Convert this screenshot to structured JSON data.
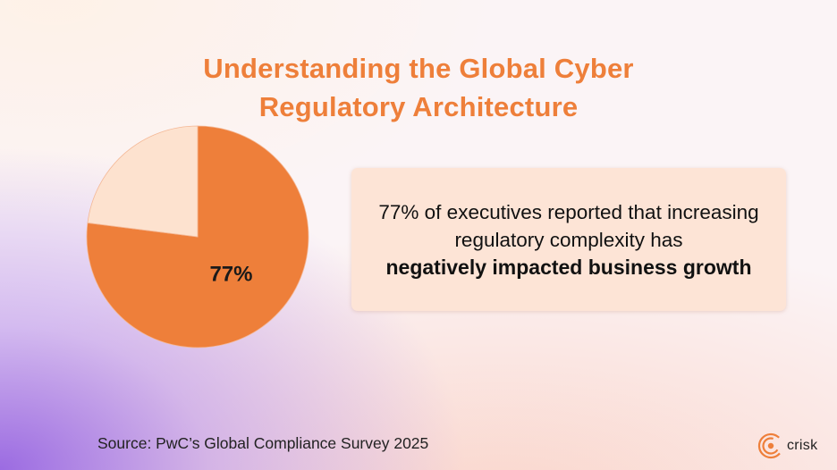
{
  "title": {
    "line1": "Understanding the Global Cyber",
    "line2": "Regulatory Architecture"
  },
  "chart_data": {
    "type": "pie",
    "slices": [
      {
        "value": 77,
        "label": "77%",
        "color": "#ee7f3a"
      },
      {
        "value": 23,
        "label": "",
        "color": "#fde2cf"
      }
    ],
    "start": "12 o'clock",
    "direction": "clockwise"
  },
  "callout": {
    "text_normal": "77% of executives reported that increasing regulatory complexity has",
    "text_bold": "negatively impacted business growth"
  },
  "source": "Source: PwC’s Global Compliance Survey 2025",
  "brand": {
    "name": "crisk",
    "icon": "crisk-logo-icon",
    "accent": "#ee7f3a"
  }
}
